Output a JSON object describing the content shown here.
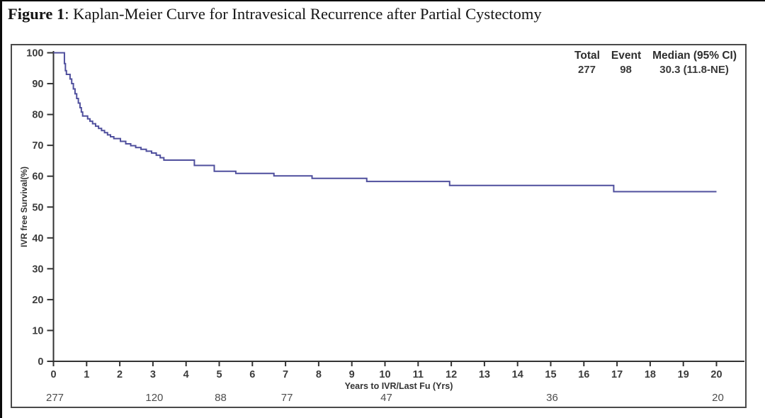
{
  "figure": {
    "title_label": "Figure 1",
    "title_text": ": Kaplan-Meier Curve for Intravesical Recurrence after Partial Cystectomy"
  },
  "stats": {
    "headers": [
      "Total",
      "Event",
      "Median (95% CI)"
    ],
    "values": [
      "277",
      "98",
      "30.3 (11.8-NE)"
    ]
  },
  "chart_data": {
    "type": "line",
    "subtype": "kaplan-meier-step",
    "title": "",
    "xlabel": "Years to IVR/Last Fu (Yrs)",
    "ylabel": "IVR free Survival(%)",
    "xlim": [
      0,
      20
    ],
    "ylim": [
      0,
      100
    ],
    "x_ticks": [
      0,
      1,
      2,
      3,
      4,
      5,
      6,
      7,
      8,
      9,
      10,
      11,
      12,
      13,
      14,
      15,
      16,
      17,
      18,
      19,
      20
    ],
    "y_ticks": [
      0,
      10,
      20,
      30,
      40,
      50,
      60,
      70,
      80,
      90,
      100
    ],
    "grid": false,
    "legend_position": "top-right-summary-table",
    "line_color": "#4f4f9d",
    "axis_color": "#333333",
    "series": [
      {
        "name": "IVR free survival",
        "steps": [
          [
            0,
            100
          ],
          [
            0.33,
            96.5
          ],
          [
            0.36,
            94.2
          ],
          [
            0.39,
            93.0
          ],
          [
            0.5,
            91.5
          ],
          [
            0.55,
            90.0
          ],
          [
            0.6,
            88.3
          ],
          [
            0.65,
            86.7
          ],
          [
            0.7,
            85.2
          ],
          [
            0.75,
            83.7
          ],
          [
            0.8,
            82.2
          ],
          [
            0.84,
            80.8
          ],
          [
            0.88,
            79.5
          ],
          [
            1.03,
            78.6
          ],
          [
            1.1,
            77.8
          ],
          [
            1.18,
            77.0
          ],
          [
            1.27,
            76.2
          ],
          [
            1.36,
            75.5
          ],
          [
            1.45,
            74.8
          ],
          [
            1.54,
            74.1
          ],
          [
            1.63,
            73.4
          ],
          [
            1.72,
            72.8
          ],
          [
            1.82,
            72.2
          ],
          [
            2.02,
            71.3
          ],
          [
            2.18,
            70.5
          ],
          [
            2.33,
            69.9
          ],
          [
            2.48,
            69.3
          ],
          [
            2.64,
            68.7
          ],
          [
            2.8,
            68.1
          ],
          [
            2.96,
            67.5
          ],
          [
            3.1,
            66.8
          ],
          [
            3.22,
            66.0
          ],
          [
            3.33,
            65.2
          ],
          [
            4.25,
            63.5
          ],
          [
            4.85,
            61.6
          ],
          [
            5.5,
            60.9
          ],
          [
            6.65,
            60.1
          ],
          [
            7.8,
            59.3
          ],
          [
            9.45,
            58.3
          ],
          [
            11.95,
            57.0
          ],
          [
            16.9,
            55.0
          ],
          [
            20.0,
            55.0
          ]
        ]
      }
    ],
    "at_risk": {
      "times": [
        0,
        3,
        5,
        7,
        10,
        15,
        20
      ],
      "counts": [
        "277",
        "120",
        "88",
        "77",
        "47",
        "36",
        "20"
      ]
    },
    "summary": {
      "total": 277,
      "event": 98,
      "median": "30.3",
      "ci_95": "11.8-NE"
    }
  }
}
